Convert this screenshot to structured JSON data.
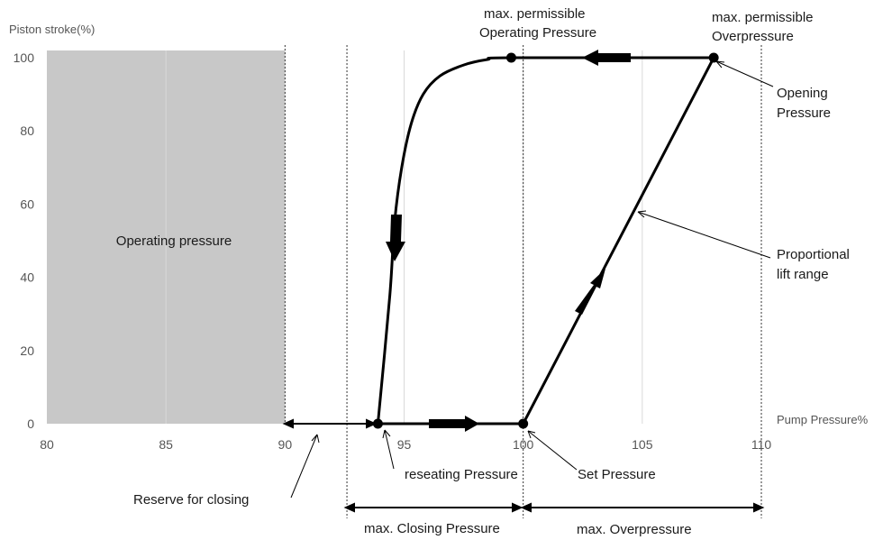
{
  "chart_data": {
    "type": "line",
    "ylabel": "Piston stroke(%)",
    "xlabel": "Pump Pressure%",
    "xlim": [
      80,
      110
    ],
    "ylim": [
      0,
      100
    ],
    "x_ticks": [
      80,
      85,
      90,
      95,
      100,
      105,
      110
    ],
    "y_ticks": [
      0,
      20,
      40,
      60,
      80,
      100
    ],
    "grid": "vertical",
    "shaded_region": {
      "label": "Operating pressure",
      "x": [
        80,
        90
      ],
      "color": "#c8c8c8"
    },
    "series": [
      {
        "x": [
          93.9,
          100,
          108,
          99.5,
          98.5,
          97.5,
          96.5,
          95.8,
          95.3,
          94.9,
          94.6,
          94.4,
          93.9
        ],
        "y": [
          0,
          0,
          100,
          100,
          99.5,
          98,
          95,
          90,
          82,
          70,
          55,
          35,
          0
        ]
      }
    ],
    "key_points": [
      {
        "label": "reseating Pressure",
        "x": 93.9,
        "y": 0
      },
      {
        "label": "Set Pressure",
        "x": 100,
        "y": 0
      },
      {
        "label": "Opening Pressure",
        "x": 108,
        "y": 100
      },
      {
        "label": "max. permissible Operating Pressure",
        "x": 99.5,
        "y": 100
      }
    ],
    "vertical_reference_lines": [
      90,
      92.6,
      100,
      110
    ],
    "annotations": {
      "max_operating_line1": "max. permissible",
      "max_operating_line2": "Operating Pressure",
      "max_overpressure_line1": "max. permissible",
      "max_overpressure_line2": "Overpressure",
      "opening_line1": "Opening",
      "opening_line2": "Pressure",
      "proportional_line1": "Proportional",
      "proportional_line2": "lift range",
      "reseating": "reseating Pressure",
      "set_pressure": "Set Pressure",
      "reserve": "Reserve for closing",
      "max_closing": "max. Closing Pressure",
      "max_overpressure": "max. Overpressure"
    }
  }
}
